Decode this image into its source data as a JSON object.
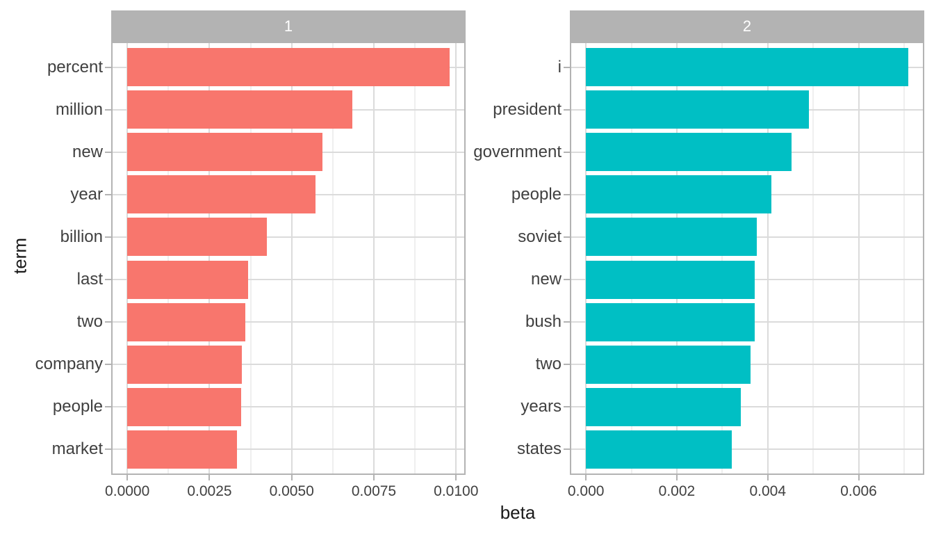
{
  "axes": {
    "x_title": "beta",
    "y_title": "term"
  },
  "chart_data": [
    {
      "type": "bar",
      "orientation": "horizontal",
      "facet_label": "1",
      "bar_color": "#F8766D",
      "categories": [
        "percent",
        "million",
        "new",
        "year",
        "billion",
        "last",
        "two",
        "company",
        "people",
        "market"
      ],
      "values": [
        0.0098,
        0.00685,
        0.00594,
        0.00572,
        0.00424,
        0.00368,
        0.0036,
        0.00349,
        0.00346,
        0.00333
      ],
      "x_tick_values": [
        0,
        0.0025,
        0.005,
        0.0075,
        0.01
      ],
      "x_tick_labels": [
        "0.0000",
        "0.0025",
        "0.0050",
        "0.0075",
        "0.0100"
      ],
      "xlim": [
        -0.00049,
        0.01029
      ],
      "grid": "major-and-minor",
      "legend": "none"
    },
    {
      "type": "bar",
      "orientation": "horizontal",
      "facet_label": "2",
      "bar_color": "#00BFC4",
      "categories": [
        "i",
        "president",
        "government",
        "people",
        "soviet",
        "new",
        "bush",
        "two",
        "years",
        "states"
      ],
      "values": [
        0.00709,
        0.0049,
        0.00452,
        0.00408,
        0.00376,
        0.00371,
        0.00371,
        0.00362,
        0.00341,
        0.00321
      ],
      "x_tick_values": [
        0,
        0.002,
        0.004,
        0.006
      ],
      "x_tick_labels": [
        "0.000",
        "0.002",
        "0.004",
        "0.006"
      ],
      "xlim": [
        -0.000355,
        0.0074445
      ],
      "grid": "major-and-minor",
      "legend": "none"
    }
  ],
  "style": {
    "background": "#FFFFFF",
    "strip_bg": "#B3B3B3",
    "strip_text_color": "#FFFFFF",
    "panel_border": "#B3B3B3",
    "grid_major": "#DBDBDB",
    "grid_minor": "#EFEFEF",
    "tick_color": "#B3B3B3",
    "axis_text_color": "#404040",
    "axis_title_color": "#1A1A1A"
  }
}
